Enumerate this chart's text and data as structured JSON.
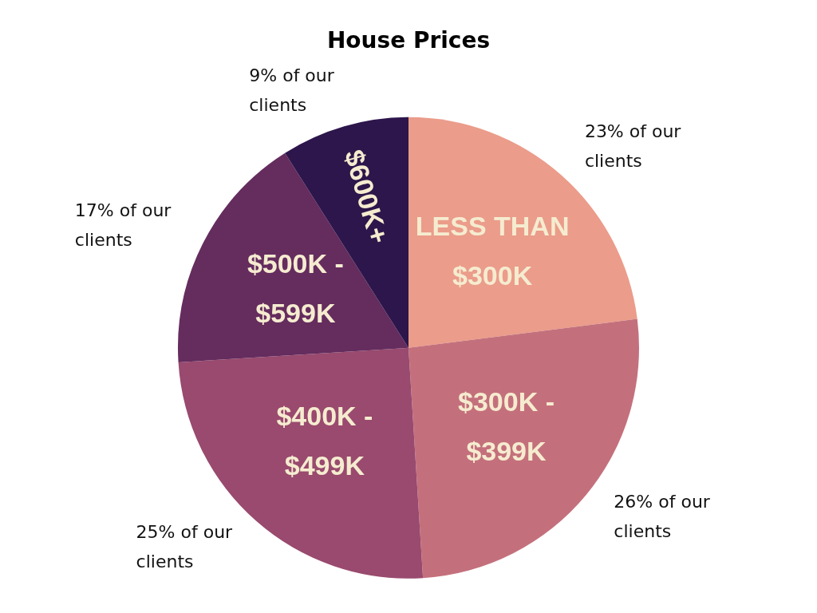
{
  "chart_data": {
    "type": "pie",
    "title": "House Prices",
    "categories": [
      "LESS THAN $300K",
      "$300K - $399K",
      "$400K - $499K",
      "$500K - $599K",
      "$600K+"
    ],
    "values": [
      23,
      26,
      25,
      17,
      9
    ],
    "colors": [
      "#eb9c8a",
      "#c4707c",
      "#994a6e",
      "#652c5e",
      "#2d164b"
    ],
    "value_labels": [
      "23% of our clients",
      "26% of our clients",
      "25% of our clients",
      "17% of our clients",
      "9% of our clients"
    ],
    "legend": false
  }
}
